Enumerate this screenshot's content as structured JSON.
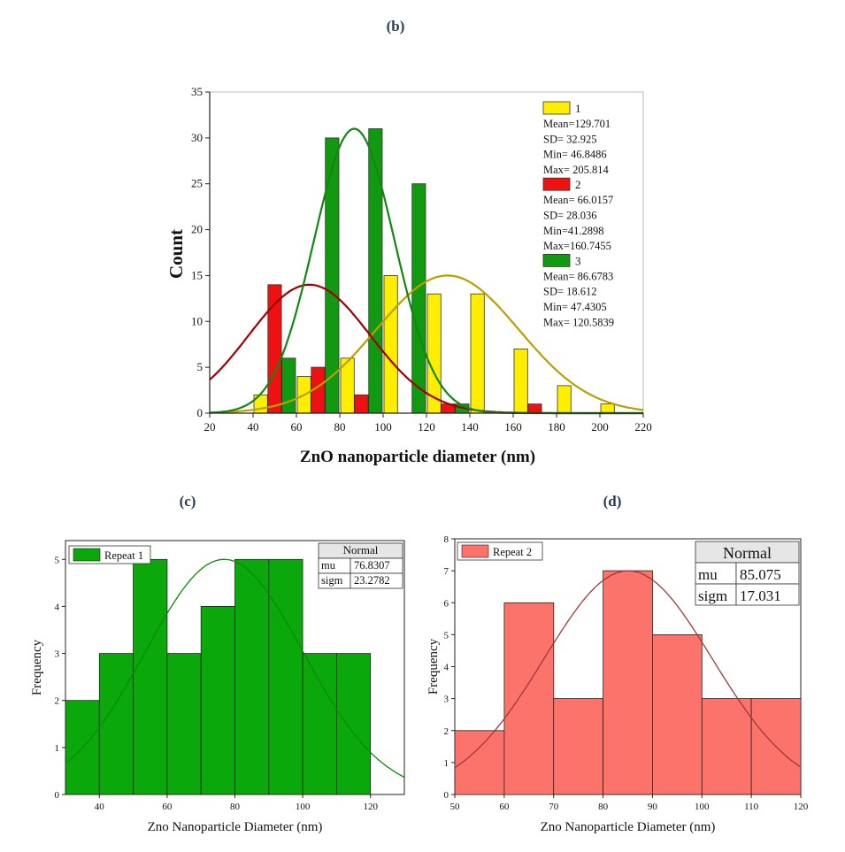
{
  "chart_data": [
    {
      "panel": "(b)",
      "type": "bar",
      "xlabel": "ZnO nanoparticle diameter (nm)",
      "ylabel": "Count",
      "xlim": [
        20,
        220
      ],
      "ylim": [
        0,
        35
      ],
      "xticks": [
        20,
        40,
        60,
        80,
        100,
        120,
        140,
        160,
        180,
        200,
        220
      ],
      "yticks": [
        0,
        5,
        10,
        15,
        20,
        25,
        30,
        35
      ],
      "bin_width": 20,
      "series": [
        {
          "name": "1",
          "color": "#ffee00",
          "curve_color": "#b8a000",
          "bin_starts": [
            40,
            60,
            80,
            100,
            120,
            140,
            160,
            180,
            200
          ],
          "values": [
            2,
            4,
            6,
            15,
            13,
            13,
            7,
            3,
            1
          ],
          "fit": {
            "mean": 129.701,
            "sd": 32.925,
            "peak": 15
          },
          "stats": [
            "Mean=129.701",
            "SD= 32.925",
            "Min= 46.8486",
            "Max= 205.814"
          ]
        },
        {
          "name": "2",
          "color": "#ee1111",
          "curve_color": "#a00000",
          "bin_starts": [
            40,
            60,
            80,
            120,
            160
          ],
          "values": [
            14,
            5,
            2,
            1,
            1
          ],
          "fit": {
            "mean": 66.0157,
            "sd": 28.036,
            "peak": 14
          },
          "stats": [
            "Mean= 66.0157",
            "SD= 28.036",
            "Min=41.2898",
            "Max=160.7455"
          ]
        },
        {
          "name": "3",
          "color": "#119911",
          "curve_color": "#118811",
          "bin_starts": [
            40,
            60,
            80,
            100,
            120
          ],
          "values": [
            6,
            30,
            31,
            25,
            1
          ],
          "fit": {
            "mean": 86.6783,
            "sd": 18.612,
            "peak": 31
          },
          "stats": [
            "Mean= 86.6783",
            "SD= 18.612",
            "Min= 47.4305",
            "Max= 120.5839"
          ]
        }
      ]
    },
    {
      "panel": "(c)",
      "type": "bar",
      "xlabel": "Zno Nanoparticle Diameter (nm)",
      "ylabel": "Frequency",
      "xlim": [
        30,
        130
      ],
      "ylim": [
        0,
        5.4
      ],
      "xticks": [
        40,
        60,
        80,
        100,
        120
      ],
      "yticks": [
        0,
        1,
        2,
        3,
        4,
        5
      ],
      "bin_edges": [
        30,
        40,
        50,
        60,
        70,
        80,
        90,
        100,
        110,
        120
      ],
      "values": [
        2,
        3,
        5,
        3,
        4,
        5,
        5,
        3,
        3
      ],
      "color": "#0aa80a",
      "curve_color": "#0a8a0a",
      "legend": "Repeat 1",
      "fit": {
        "mean": 76.8307,
        "sd": 23.2782,
        "peak": 5
      },
      "stats_title": "Normal",
      "stats": [
        [
          "mu",
          "76.8307"
        ],
        [
          "sigm",
          "23.2782"
        ]
      ]
    },
    {
      "panel": "(d)",
      "type": "bar",
      "xlabel": "Zno Nanoparticle Diameter (nm)",
      "ylabel": "Frequency",
      "xlim": [
        50,
        120
      ],
      "ylim": [
        0,
        8
      ],
      "xticks": [
        50,
        60,
        70,
        80,
        90,
        100,
        110,
        120
      ],
      "yticks": [
        0,
        1,
        2,
        3,
        4,
        5,
        6,
        7,
        8
      ],
      "bin_edges": [
        50,
        60,
        70,
        80,
        90,
        100,
        110,
        120
      ],
      "values": [
        2,
        6,
        3,
        7,
        5,
        3,
        3
      ],
      "color": "#fb736a",
      "curve_color": "#a03838",
      "legend": "Repeat 2",
      "fit": {
        "mean": 85.075,
        "sd": 17.031,
        "peak": 7
      },
      "stats_title": "Normal",
      "stats": [
        [
          "mu",
          "85.075"
        ],
        [
          "sigm",
          "17.031"
        ]
      ]
    }
  ]
}
